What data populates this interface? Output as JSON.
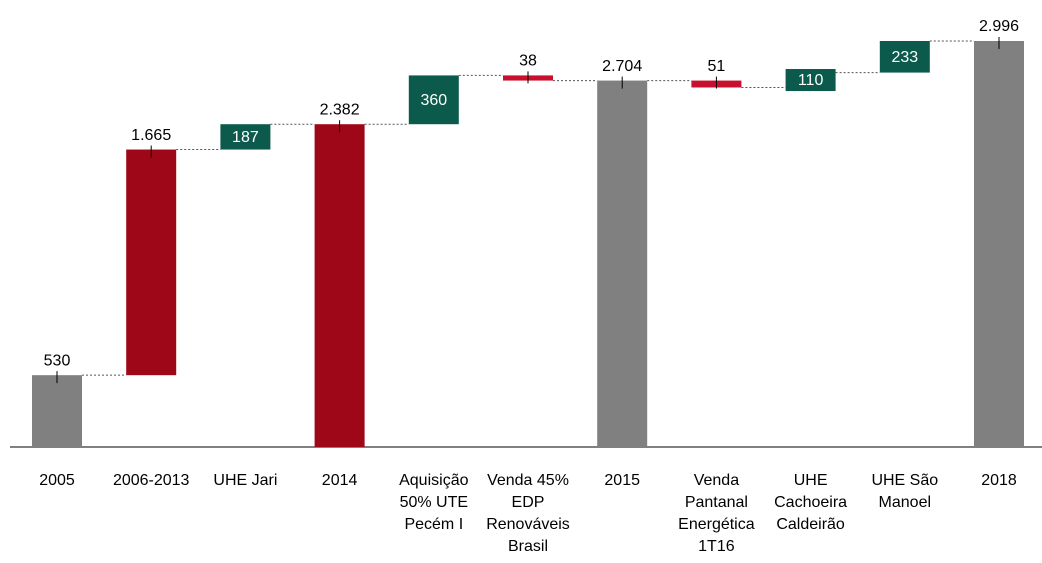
{
  "chart_data": {
    "type": "waterfall",
    "categories": [
      [
        "2005"
      ],
      [
        "2006-2013"
      ],
      [
        "UHE Jari"
      ],
      [
        "2014"
      ],
      [
        "Aquisição",
        "50% UTE",
        "Pecém I"
      ],
      [
        "Venda 45%",
        "EDP",
        "Renováveis",
        "Brasil"
      ],
      [
        "2015"
      ],
      [
        "Venda",
        "Pantanal",
        "Energética",
        "1T16"
      ],
      [
        "UHE",
        "Cachoeira",
        "Caldeirão"
      ],
      [
        "UHE São",
        "Manoel"
      ],
      [
        "2018"
      ]
    ],
    "values": [
      530,
      1665,
      187,
      2382,
      360,
      38,
      2704,
      51,
      110,
      233,
      2996
    ],
    "value_labels": [
      "530",
      "1.665",
      "187",
      "2.382",
      "360",
      "38",
      "2.704",
      "51",
      "110",
      "233",
      "2.996"
    ],
    "kinds": [
      "total",
      "increase",
      "increase",
      "total",
      "increase",
      "decrease",
      "total",
      "decrease",
      "increase",
      "increase",
      "total"
    ],
    "colors": [
      "#808080",
      "#9e0718",
      "#0b5a4b",
      "#9e0718",
      "#0b5a4b",
      "#c8102e",
      "#808080",
      "#c8102e",
      "#0b5a4b",
      "#0b5a4b",
      "#808080"
    ],
    "label_inside": [
      false,
      false,
      true,
      false,
      true,
      false,
      false,
      false,
      true,
      true,
      false
    ]
  }
}
